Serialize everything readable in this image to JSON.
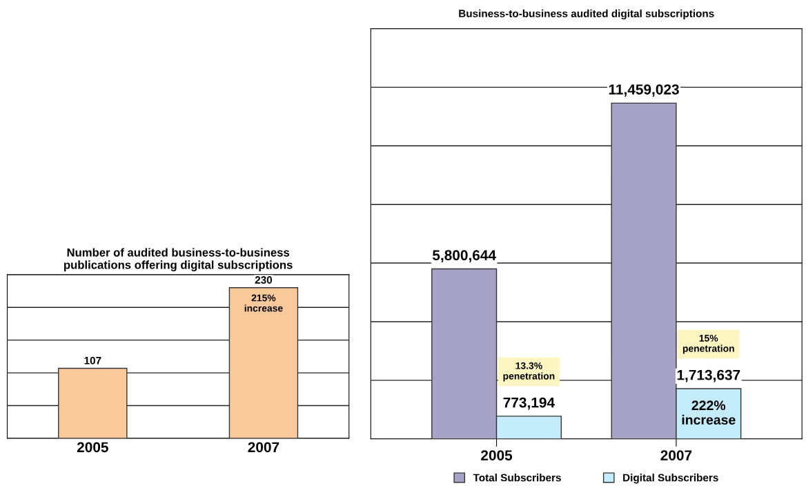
{
  "chart_data": [
    {
      "type": "bar",
      "title": "Number of audited business-to-business\npublications offering digital subscriptions",
      "categories": [
        "2005",
        "2007"
      ],
      "series": [
        {
          "color": "#f9c89b",
          "values": [
            107,
            230
          ],
          "value_labels": [
            "107",
            "230"
          ]
        }
      ],
      "ylim": [
        0,
        250
      ],
      "yticks": [
        {
          "value": 0,
          "label": null
        },
        {
          "value": 50,
          "label": null
        },
        {
          "value": 100,
          "label": null
        },
        {
          "value": 150,
          "label": null
        },
        {
          "value": 200,
          "label": null
        },
        {
          "value": 250,
          "label": null
        }
      ],
      "tick_labels": "x",
      "grid": "y",
      "legend": false,
      "annotations": [
        {
          "text": "215%\nincrease",
          "x": "2007",
          "y": 230
        }
      ]
    },
    {
      "type": "bar",
      "title": "Business-to-business audited digital subscriptions",
      "categories": [
        "2005",
        "2007"
      ],
      "series": [
        {
          "name": "Total Subscribers",
          "color": "#a6a3c7",
          "values": [
            5800644,
            11459023
          ],
          "value_labels": [
            "5,800,644",
            "11,459,023"
          ]
        },
        {
          "name": "Digital Subscribers",
          "color": "#c5ecfb",
          "values": [
            773194,
            1713637
          ],
          "value_labels": [
            "773,194",
            "1,713,637"
          ]
        }
      ],
      "ylim": [
        0,
        14000000
      ],
      "yticks": [
        {
          "value": 0,
          "label": null
        },
        {
          "value": 2000000,
          "label": null
        },
        {
          "value": 4000000,
          "label": null
        },
        {
          "value": 6000000,
          "label": null
        },
        {
          "value": 8000000,
          "label": null
        },
        {
          "value": 10000000,
          "label": null
        },
        {
          "value": 12000000,
          "label": null
        },
        {
          "value": 14000000,
          "label": null
        }
      ],
      "tick_labels": "x",
      "grid": "y",
      "legend": "bottom",
      "annotations": [
        "13.3%\npenetration",
        "15%\npenetration",
        {
          "text": "222%\nincrease",
          "x": "2007",
          "y": 1713637
        }
      ]
    }
  ]
}
